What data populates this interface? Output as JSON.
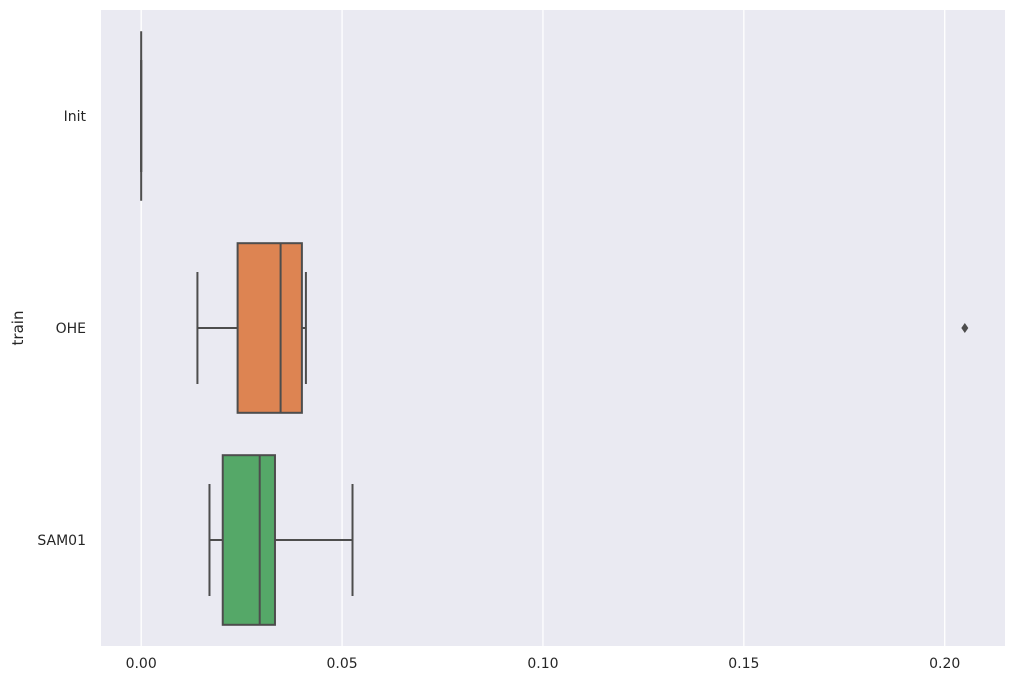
{
  "chart_data": {
    "type": "boxplot",
    "orientation": "horizontal",
    "ylabel": "train",
    "xlabel": "",
    "xlim": [
      -0.01,
      0.215
    ],
    "x_ticks": [
      0.0,
      0.05,
      0.1,
      0.15,
      0.2
    ],
    "x_tick_labels": [
      "0.00",
      "0.05",
      "0.10",
      "0.15",
      "0.20"
    ],
    "grid": true,
    "categories": [
      "Init",
      "OHE",
      "SAM01"
    ],
    "boxes": [
      {
        "category": "Init",
        "whisker_low": 0.0,
        "q1": 0.0,
        "median": 0.0,
        "q3": 0.0,
        "whisker_high": 0.0,
        "outliers": [],
        "color": "#4c72b0"
      },
      {
        "category": "OHE",
        "whisker_low": 0.014,
        "q1": 0.024,
        "median": 0.0347,
        "q3": 0.04,
        "whisker_high": 0.041,
        "outliers": [
          0.205
        ],
        "color": "#dd8452"
      },
      {
        "category": "SAM01",
        "whisker_low": 0.017,
        "q1": 0.0203,
        "median": 0.0295,
        "q3": 0.0333,
        "whisker_high": 0.0526,
        "outliers": [],
        "color": "#55a868"
      }
    ],
    "colors": {
      "plot_background": "#eaeaf2",
      "grid": "#ffffff",
      "line": "#4d4d4d"
    }
  }
}
